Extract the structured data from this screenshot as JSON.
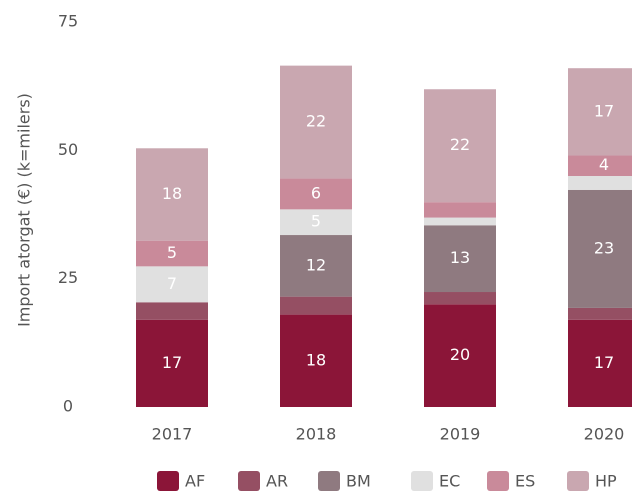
{
  "chart_data": {
    "type": "stacked_bar",
    "y_label": "Import atorgat (€) (k=milers)",
    "categories": [
      "2017",
      "2018",
      "2019",
      "2020"
    ],
    "ylim": [
      0,
      75
    ],
    "yticks": [
      0,
      25,
      50,
      75
    ],
    "series": [
      {
        "name": "AF",
        "color": "#8b1538",
        "values": [
          17,
          18,
          20,
          17
        ],
        "value_labels": [
          "17",
          "18",
          "20",
          "17"
        ]
      },
      {
        "name": "AR",
        "color": "#954f63",
        "values": [
          3.4,
          3.5,
          2.4,
          2.3
        ],
        "value_labels": [
          null,
          null,
          null,
          null
        ]
      },
      {
        "name": "BM",
        "color": "#8f7a80",
        "values": [
          0,
          12,
          13,
          23
        ],
        "value_labels": [
          null,
          "12",
          "13",
          "23"
        ]
      },
      {
        "name": "EC",
        "color": "#e0e0e0",
        "values": [
          7,
          5,
          1.5,
          2.7
        ],
        "value_labels": [
          "7",
          "5",
          null,
          null
        ]
      },
      {
        "name": "ES",
        "color": "#c98a9a",
        "values": [
          5,
          6,
          3,
          4
        ],
        "value_labels": [
          "5",
          "6",
          null,
          "4"
        ]
      },
      {
        "name": "HP",
        "color": "#c9a7b0",
        "values": [
          18,
          22,
          22,
          17
        ],
        "value_labels": [
          "18",
          "22",
          "22",
          "17"
        ]
      }
    ]
  }
}
